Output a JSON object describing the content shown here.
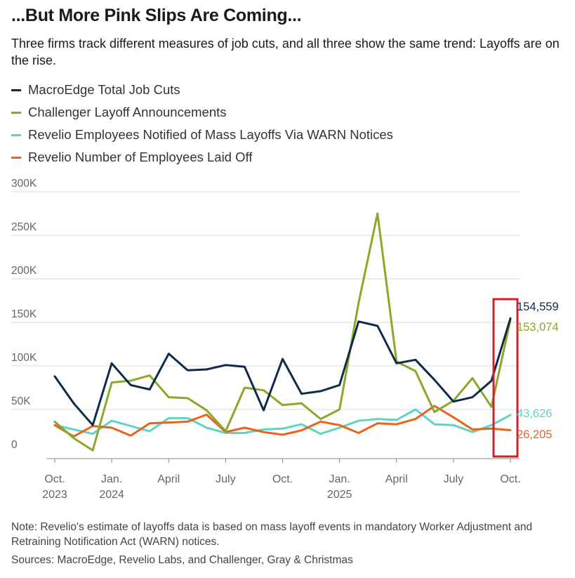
{
  "title": "...But More Pink Slips Are Coming...",
  "subtitle": "Three firms track different measures of job cuts, and all three show the same trend: Layoffs are on the rise.",
  "note": "Note: Revelio's estimate of layoffs data is based on mass layoff events in mandatory Worker Adjustment and Retraining Notification Act (WARN) notices.",
  "sources": "Sources: MacroEdge, Revelio Labs, and Challenger, Gray & Christmas",
  "chart_data": {
    "type": "line",
    "x": [
      "2023-10",
      "2023-11",
      "2023-12",
      "2024-01",
      "2024-02",
      "2024-03",
      "2024-04",
      "2024-05",
      "2024-06",
      "2024-07",
      "2024-08",
      "2024-09",
      "2024-10",
      "2024-11",
      "2024-12",
      "2025-01",
      "2025-02",
      "2025-03",
      "2025-04",
      "2025-05",
      "2025-06",
      "2025-07",
      "2025-08",
      "2025-09",
      "2025-10"
    ],
    "x_tick_labels": [
      {
        "x": "2023-10",
        "line1": "Oct.",
        "line2": "2023"
      },
      {
        "x": "2024-01",
        "line1": "Jan.",
        "line2": "2024"
      },
      {
        "x": "2024-04",
        "line1": "April",
        "line2": ""
      },
      {
        "x": "2024-07",
        "line1": "July",
        "line2": ""
      },
      {
        "x": "2024-10",
        "line1": "Oct.",
        "line2": ""
      },
      {
        "x": "2025-01",
        "line1": "Jan.",
        "line2": "2025"
      },
      {
        "x": "2025-04",
        "line1": "April",
        "line2": ""
      },
      {
        "x": "2025-07",
        "line1": "July",
        "line2": ""
      },
      {
        "x": "2025-10",
        "line1": "Oct.",
        "line2": ""
      }
    ],
    "y_ticks": [
      {
        "value": 0,
        "label": "0"
      },
      {
        "value": 50000,
        "label": "50K"
      },
      {
        "value": 100000,
        "label": "100K"
      },
      {
        "value": 150000,
        "label": "150K"
      },
      {
        "value": 200000,
        "label": "200K"
      },
      {
        "value": 250000,
        "label": "250K"
      },
      {
        "value": 300000,
        "label": "300K"
      }
    ],
    "ylim": [
      0,
      300000
    ],
    "grid": true,
    "legend_placement": "top-left",
    "series": [
      {
        "name": "MacroEdge Total Job Cuts",
        "color": "#0f2a4a",
        "end_label": "154,559",
        "values": [
          88000,
          57000,
          32000,
          103000,
          78000,
          73000,
          114000,
          95000,
          96000,
          101000,
          99000,
          49000,
          108000,
          68000,
          71000,
          78000,
          151000,
          146000,
          103000,
          107000,
          84000,
          59000,
          64000,
          83000,
          154559
        ]
      },
      {
        "name": "Challenger Layoff Announcements",
        "color": "#8aa82a",
        "end_label": "153,074",
        "values": [
          36000,
          17000,
          3000,
          81000,
          83000,
          89000,
          64000,
          63000,
          49000,
          25000,
          75000,
          72000,
          55000,
          57000,
          39000,
          50000,
          172000,
          275000,
          105000,
          94000,
          47000,
          60000,
          86000,
          53000,
          153074
        ]
      },
      {
        "name": "Revelio Employees Notified of Mass Layoffs Via WARN Notices",
        "color": "#5fd4c4",
        "end_label": "43,626",
        "values": [
          32000,
          27000,
          22000,
          37000,
          31000,
          25000,
          40000,
          40000,
          29000,
          23000,
          23000,
          27000,
          28000,
          33000,
          22000,
          29000,
          37000,
          39000,
          38000,
          50000,
          33000,
          32000,
          24000,
          32000,
          43626
        ]
      },
      {
        "name": "Revelio Number of Employees Laid Off",
        "color": "#e8641c",
        "end_label": "26,205",
        "values": [
          32000,
          19000,
          31000,
          29000,
          20000,
          34000,
          35000,
          36000,
          44000,
          24000,
          29000,
          24000,
          21000,
          26000,
          36000,
          32000,
          23000,
          34000,
          33000,
          39000,
          54000,
          41000,
          27000,
          28000,
          26205
        ]
      }
    ],
    "highlight_box_color": "#d11f2b"
  }
}
